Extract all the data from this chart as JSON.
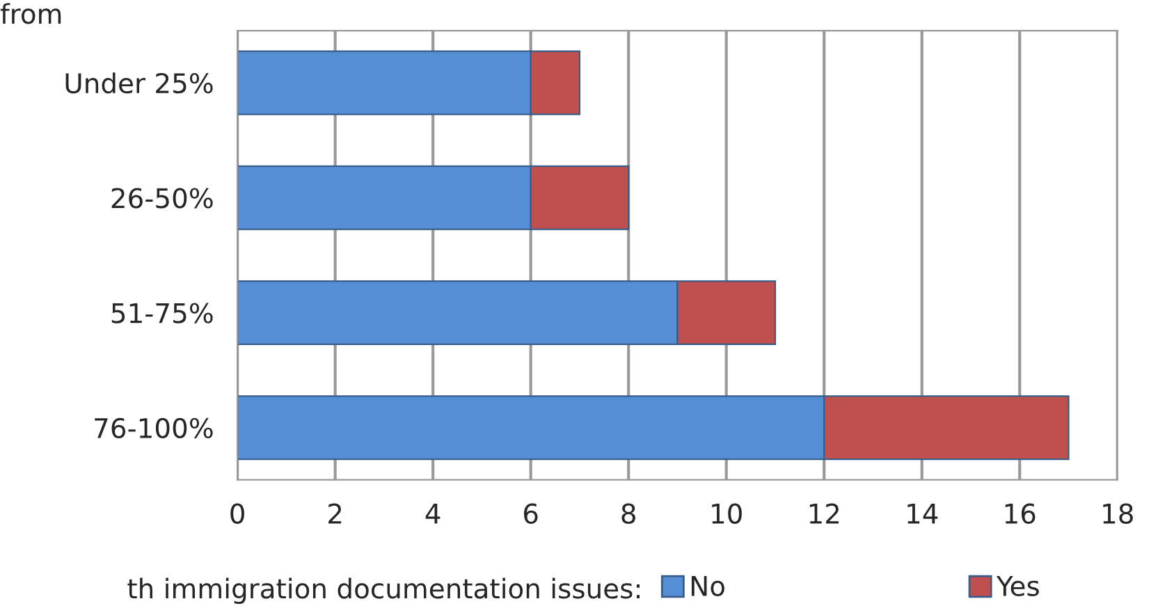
{
  "chart_data": {
    "type": "bar",
    "orientation": "horizontal",
    "stacked": true,
    "title": "from",
    "legend_title": "th immigration documentation issues:",
    "categories": [
      "Under 25%",
      "26-50%",
      "51-75%",
      "76-100%"
    ],
    "series": [
      {
        "name": "No",
        "color": "#558ed5",
        "values": [
          6,
          6,
          9,
          12
        ]
      },
      {
        "name": "Yes",
        "color": "#c0504d",
        "values": [
          1,
          2,
          2,
          5
        ]
      }
    ],
    "xlim": [
      0,
      18
    ],
    "xticks": [
      0,
      2,
      4,
      6,
      8,
      10,
      12,
      14,
      16,
      18
    ],
    "grid": "x",
    "legend": "bottom"
  }
}
